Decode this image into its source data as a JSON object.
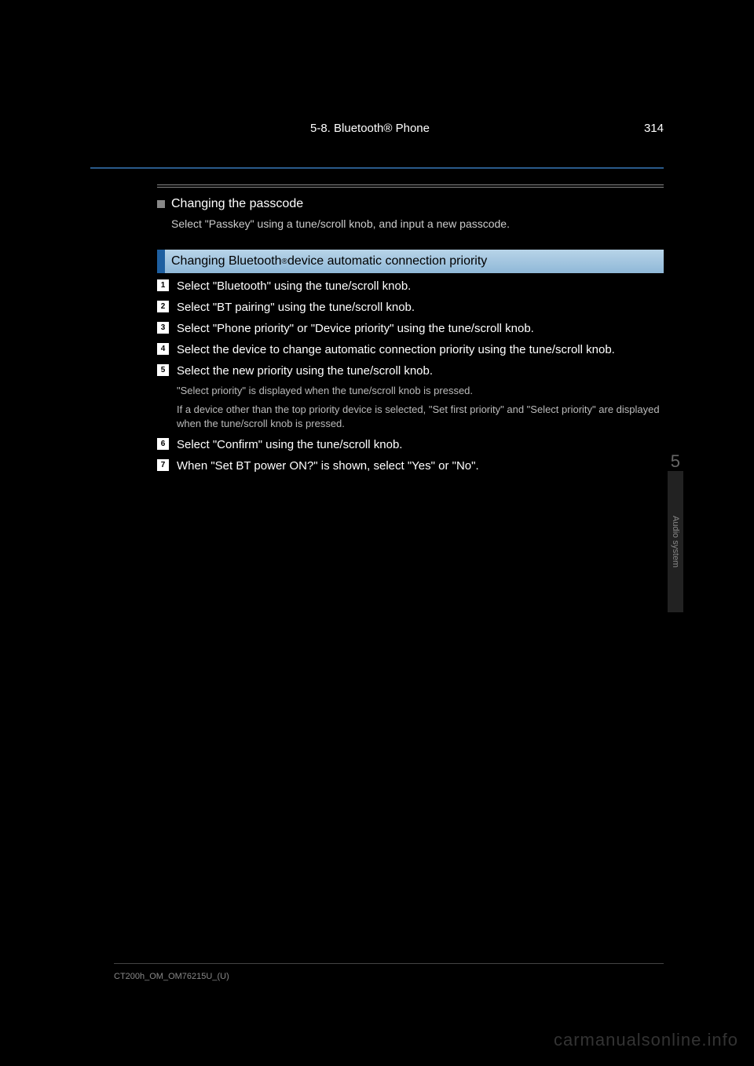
{
  "page": {
    "number": "314",
    "section_ref": "5-8. Bluetooth® Phone"
  },
  "changing_subsection": {
    "title": "Changing the passcode",
    "note": "Select \"Passkey\" using a tune/scroll knob, and input a new passcode."
  },
  "section_header": {
    "title_pre": "Changing Bluetooth",
    "registered": "®",
    "title_post": " device automatic connection priority"
  },
  "steps": [
    {
      "num": "1",
      "text": "Select \"Bluetooth\" using the tune/scroll knob."
    },
    {
      "num": "2",
      "text": "Select \"BT pairing\" using the tune/scroll knob."
    },
    {
      "num": "3",
      "text": "Select \"Phone priority\" or \"Device priority\" using the tune/scroll knob."
    },
    {
      "num": "4",
      "text": "Select the device to change automatic connection priority using the tune/scroll knob."
    },
    {
      "num": "5",
      "text": "Select the new priority using the tune/scroll knob."
    }
  ],
  "step_notes": [
    "\"Select priority\" is displayed when the tune/scroll knob is pressed.",
    "If a device other than the top priority device is selected, \"Set first priority\" and \"Select priority\" are displayed when the tune/scroll knob is pressed."
  ],
  "late_steps": [
    {
      "num": "6",
      "text": "Select \"Confirm\" using the tune/scroll knob."
    },
    {
      "num": "7",
      "text": "When \"Set BT power ON?\" is shown, select \"Yes\" or \"No\"."
    }
  ],
  "sidebar": {
    "chapter_num": "5",
    "chapter_label": "Audio system"
  },
  "footer": {
    "text": "CT200h_OM_OM76215U_(U)"
  },
  "watermark": "carmanualsonline.info",
  "colors": {
    "blue_line": "#2a5a8a",
    "header_accent": "#1e5fa0",
    "header_gradient_top": "#b8d4e8",
    "header_gradient_bottom": "#8fb8d8"
  }
}
